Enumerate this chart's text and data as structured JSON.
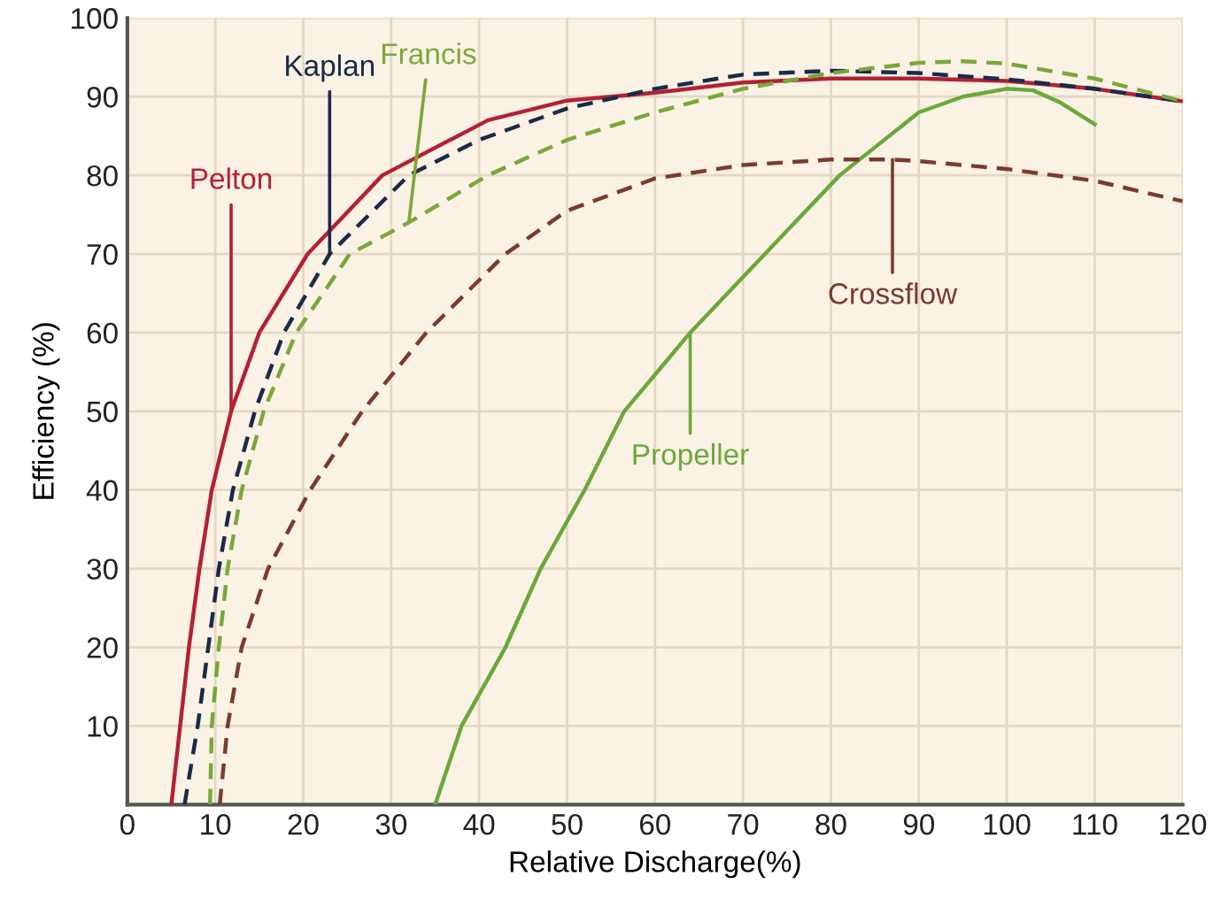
{
  "chart_data": {
    "type": "line",
    "xlabel": "Relative Discharge(%)",
    "ylabel": "Efficiency (%)",
    "xlim": [
      0,
      120
    ],
    "ylim": [
      0,
      100
    ],
    "xticks": [
      0,
      10,
      20,
      30,
      40,
      50,
      60,
      70,
      80,
      90,
      100,
      110,
      120
    ],
    "yticks": [
      {
        "value": 0,
        "label": null
      },
      10,
      20,
      30,
      40,
      50,
      60,
      70,
      80,
      90,
      100
    ],
    "grid": true,
    "legend": false,
    "series": [
      {
        "name": "Pelton",
        "color": "#b22234",
        "line_style": "solid",
        "x": [
          5,
          6,
          7,
          8.2,
          9.6,
          11.8,
          15,
          20.5,
          29,
          41,
          50,
          60,
          70,
          80,
          90,
          100,
          110,
          120
        ],
        "values": [
          0,
          10,
          20,
          30,
          40,
          50,
          60,
          70,
          80,
          87,
          89.5,
          90.5,
          91.8,
          92.3,
          92.3,
          92,
          91,
          89.4
        ]
      },
      {
        "name": "Kaplan",
        "color": "#1a2a4a",
        "line_style": "dashed",
        "x": [
          6.5,
          8,
          9.2,
          10.4,
          12,
          14.5,
          17.8,
          23,
          32,
          40,
          50,
          60,
          70,
          80,
          90,
          100,
          110,
          120
        ],
        "values": [
          0,
          10,
          20,
          30,
          40,
          50,
          60,
          70,
          80,
          84.5,
          88.5,
          91,
          92.8,
          93.3,
          93,
          92.2,
          91,
          89.4
        ]
      },
      {
        "name": "Francis",
        "color": "#7aa73a",
        "line_style": "dashed",
        "x": [
          9.4,
          9.6,
          10.4,
          11.4,
          13,
          15.5,
          19.2,
          25.3,
          32,
          41,
          50,
          60,
          70,
          80,
          90,
          95,
          100,
          110,
          120
        ],
        "values": [
          0,
          10,
          20,
          30,
          40,
          50,
          60,
          70,
          74,
          80,
          84.5,
          88,
          91,
          93,
          94.3,
          94.5,
          94.2,
          92.3,
          89.4
        ]
      },
      {
        "name": "Propeller",
        "color": "#6aa83a",
        "line_style": "solid",
        "x": [
          35,
          38,
          43,
          47,
          52,
          56.5,
          64,
          72.5,
          81,
          90,
          95,
          100,
          103,
          106,
          110
        ],
        "values": [
          0,
          10,
          20,
          30,
          40,
          50,
          60,
          70,
          80,
          88,
          90,
          91,
          90.8,
          89.3,
          86.5
        ]
      },
      {
        "name": "Crossflow",
        "color": "#7a3b2e",
        "line_style": "dashed",
        "x": [
          10.5,
          11.4,
          13,
          16,
          20.8,
          26.7,
          34,
          43,
          50,
          60,
          70,
          80,
          87,
          90,
          100,
          110,
          120
        ],
        "values": [
          0,
          10,
          20,
          30,
          40,
          50,
          60,
          70,
          75.5,
          79.6,
          81.3,
          82,
          82,
          81.8,
          80.8,
          79.3,
          76.7
        ]
      }
    ]
  }
}
